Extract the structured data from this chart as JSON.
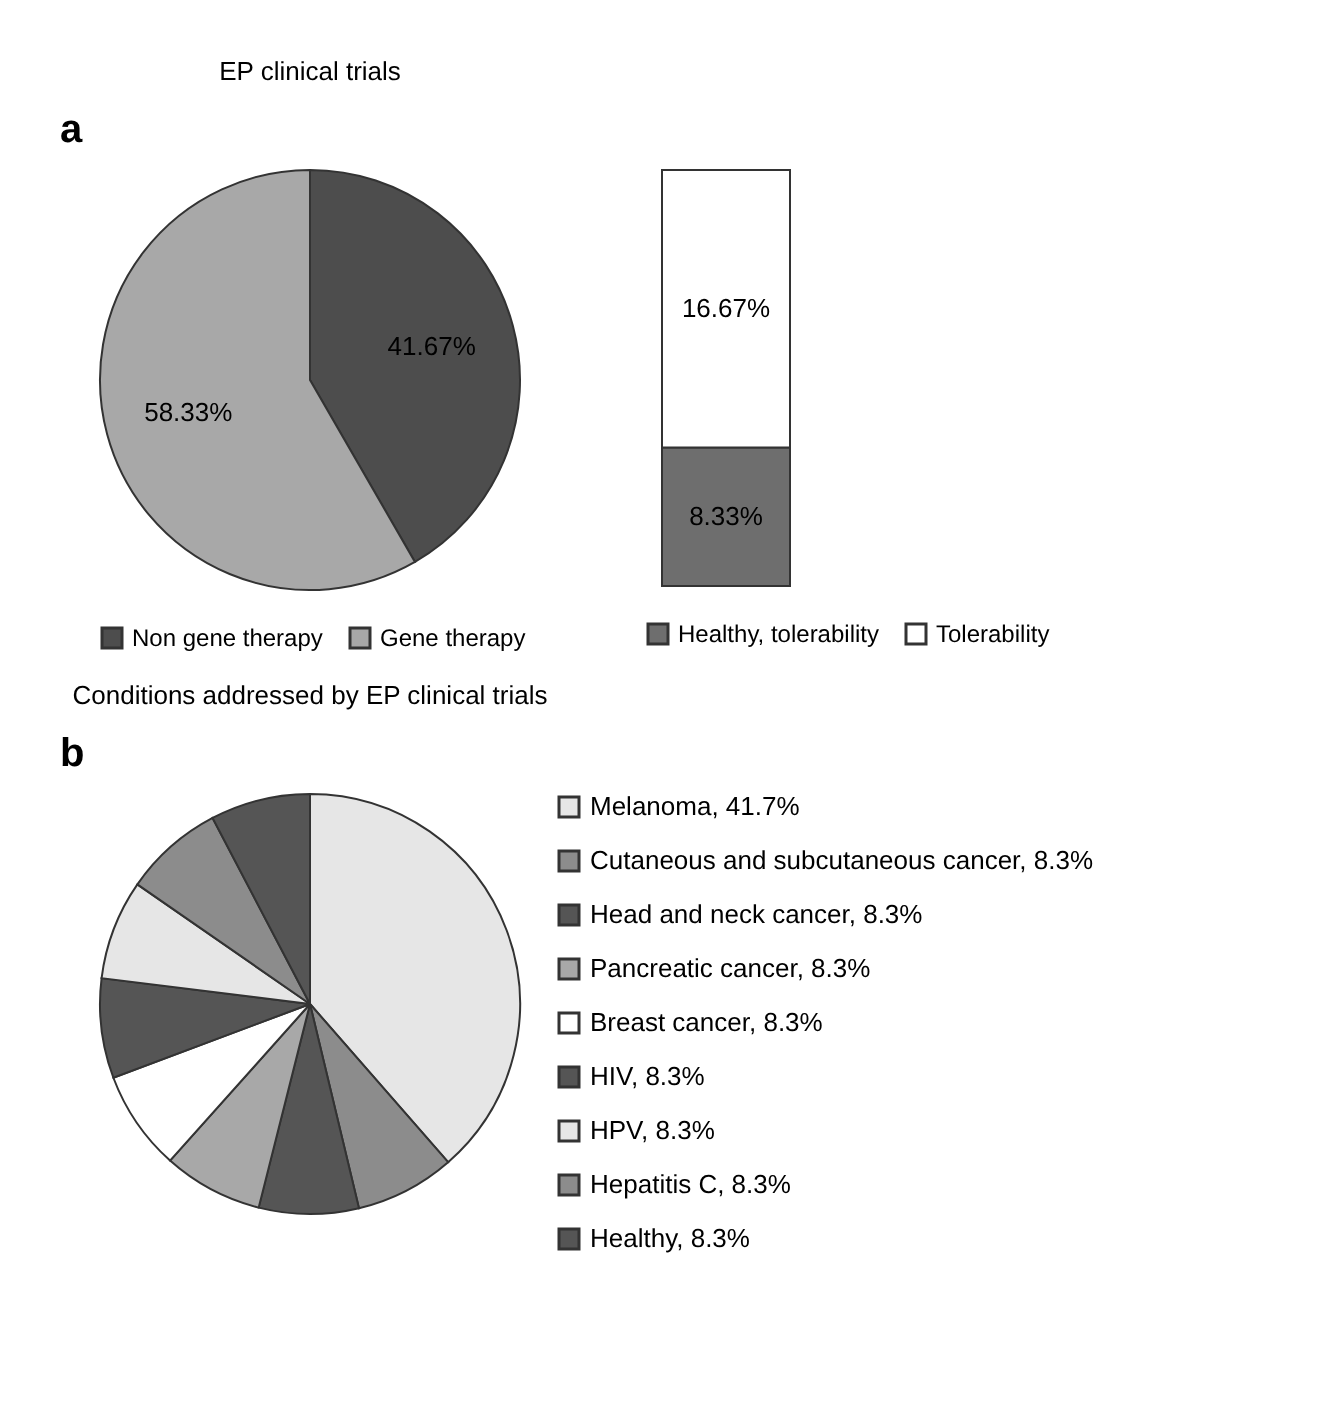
{
  "chart_data": [
    {
      "type": "pie",
      "title": "EP clinical trials",
      "annotations": [
        "a"
      ],
      "categories": [
        "Non gene therapy",
        "Gene therapy"
      ],
      "values": [
        41.67,
        58.33
      ],
      "colors": [
        "#4d4d4d",
        "#a8a8a8"
      ],
      "value_labels": [
        "41.67%",
        "58.33%"
      ],
      "legend": "bottom"
    },
    {
      "type": "bar",
      "stacked": true,
      "categories": [
        null
      ],
      "series": [
        {
          "name": "Healthy, tolerability",
          "color": "#6e6e6e",
          "values": [
            8.33
          ],
          "value_labels": [
            "8.33%"
          ]
        },
        {
          "name": "Tolerability",
          "color": "#ffffff",
          "values": [
            16.67
          ],
          "value_labels": [
            "16.67%"
          ]
        }
      ],
      "legend": "bottom"
    },
    {
      "type": "pie",
      "title": "Conditions addressed by EP clinical trials",
      "annotations": [
        "b"
      ],
      "categories": [
        "Melanoma, 41.7%",
        "Cutaneous and subcutaneous cancer, 8.3%",
        "Head and neck cancer, 8.3%",
        "Pancreatic cancer, 8.3%",
        "Breast cancer, 8.3%",
        "HIV, 8.3%",
        "HPV, 8.3%",
        "Hepatitis C, 8.3%",
        "Healthy, 8.3%"
      ],
      "values": [
        41.7,
        8.3,
        8.3,
        8.3,
        8.3,
        8.3,
        8.3,
        8.3,
        8.3
      ],
      "colors": [
        "#e6e6e6",
        "#8c8c8c",
        "#555555",
        "#a8a8a8",
        "#ffffff",
        "#555555",
        "#e6e6e6",
        "#8c8c8c",
        "#555555"
      ],
      "legend": "right"
    }
  ]
}
